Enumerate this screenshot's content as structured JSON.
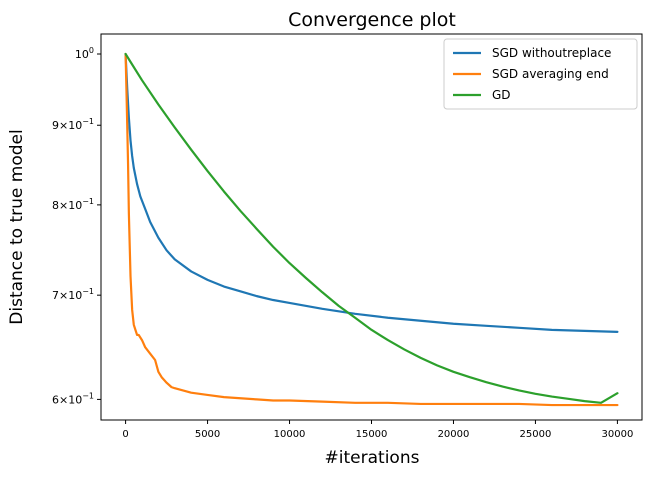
{
  "chart_data": {
    "type": "line",
    "title": "Convergence plot",
    "xlabel": "#iterations",
    "ylabel": "Distance to true model",
    "yscale": "log",
    "xlim": [
      -1500,
      31500
    ],
    "ylim": [
      0.582,
      1.03
    ],
    "grid": false,
    "legend_position": "top-right",
    "x_ticks": [
      0,
      5000,
      10000,
      15000,
      20000,
      25000,
      30000
    ],
    "x_tick_labels": [
      "0",
      "5000",
      "10000",
      "15000",
      "20000",
      "25000",
      "30000"
    ],
    "y_ticks": [
      0.6,
      0.7,
      0.8,
      0.9,
      1.0
    ],
    "y_tick_labels": [
      {
        "mantissa": "6",
        "base": "10",
        "exp": "−1"
      },
      {
        "mantissa": "7",
        "base": "10",
        "exp": "−1"
      },
      {
        "mantissa": "8",
        "base": "10",
        "exp": "−1"
      },
      {
        "mantissa": "9",
        "base": "10",
        "exp": "−1"
      },
      {
        "mantissa": "",
        "base": "10",
        "exp": "0"
      }
    ],
    "series": [
      {
        "name": "SGD withoutreplace",
        "color": "#1f77b4",
        "x": [
          0,
          100,
          200,
          300,
          400,
          500,
          700,
          900,
          1200,
          1500,
          2000,
          2500,
          3000,
          4000,
          5000,
          6000,
          7000,
          8000,
          9000,
          10000,
          12000,
          14000,
          16000,
          18000,
          20000,
          22000,
          24000,
          26000,
          28000,
          30000
        ],
        "y": [
          1.0,
          0.95,
          0.91,
          0.88,
          0.86,
          0.845,
          0.825,
          0.81,
          0.795,
          0.78,
          0.762,
          0.748,
          0.738,
          0.725,
          0.716,
          0.709,
          0.704,
          0.699,
          0.695,
          0.692,
          0.686,
          0.681,
          0.677,
          0.674,
          0.671,
          0.669,
          0.667,
          0.665,
          0.664,
          0.663
        ]
      },
      {
        "name": "SGD averaging end",
        "color": "#ff7f0e",
        "x": [
          0,
          50,
          100,
          150,
          200,
          300,
          400,
          500,
          600,
          700,
          800,
          1000,
          1200,
          1500,
          1800,
          2000,
          2200,
          2500,
          2800,
          3000,
          3500,
          4000,
          5000,
          6000,
          7000,
          8000,
          9000,
          10000,
          12000,
          14000,
          16000,
          18000,
          20000,
          22000,
          24000,
          26000,
          28000,
          30000
        ],
        "y": [
          1.0,
          0.95,
          0.9,
          0.85,
          0.79,
          0.72,
          0.685,
          0.67,
          0.665,
          0.66,
          0.66,
          0.655,
          0.648,
          0.642,
          0.636,
          0.625,
          0.62,
          0.615,
          0.611,
          0.61,
          0.608,
          0.606,
          0.604,
          0.602,
          0.601,
          0.6,
          0.599,
          0.599,
          0.598,
          0.597,
          0.597,
          0.596,
          0.596,
          0.596,
          0.596,
          0.595,
          0.595,
          0.595
        ]
      },
      {
        "name": "GD",
        "color": "#2ca02c",
        "x": [
          0,
          1000,
          2000,
          3000,
          4000,
          5000,
          6000,
          7000,
          8000,
          9000,
          10000,
          11000,
          12000,
          13000,
          14000,
          15000,
          16000,
          17000,
          18000,
          19000,
          20000,
          21000,
          22000,
          23000,
          24000,
          25000,
          26000,
          27000,
          28000,
          29000,
          30000
        ],
        "y": [
          1.0,
          0.962,
          0.928,
          0.897,
          0.868,
          0.841,
          0.816,
          0.793,
          0.772,
          0.752,
          0.734,
          0.718,
          0.703,
          0.689,
          0.677,
          0.665,
          0.655,
          0.646,
          0.638,
          0.631,
          0.625,
          0.62,
          0.6155,
          0.6115,
          0.608,
          0.605,
          0.6025,
          0.6005,
          0.5985,
          0.597,
          0.6055
        ]
      }
    ]
  }
}
